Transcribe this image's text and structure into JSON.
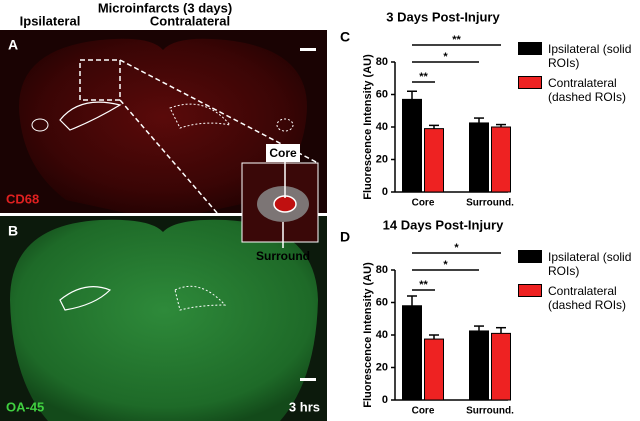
{
  "figure": {
    "title": "Microinfarcts (3 days)",
    "left_label": "Ipsilateral",
    "right_label": "Contralateral",
    "panel_a": "A",
    "panel_b": "B",
    "panel_c": "C",
    "panel_d": "D",
    "stain_a": "CD68",
    "stain_b": "OA-45",
    "time_b": "3 hrs",
    "inset_core": "Core",
    "inset_surround": "Surround"
  },
  "chart_data": [
    {
      "type": "bar",
      "title": "3 Days Post-Injury",
      "y_label": "Fluorescence Intensity (AU)",
      "categories": [
        "Core",
        "Surround."
      ],
      "series": [
        {
          "name": "Ipsilateral (solid ROIs)",
          "color": "#000000",
          "values": [
            57,
            42.5
          ],
          "errors": [
            5,
            3
          ]
        },
        {
          "name": "Contralateral (dashed ROIs)",
          "color": "#ee2222",
          "values": [
            39,
            40
          ],
          "errors": [
            2,
            1.5
          ]
        }
      ],
      "ylim": [
        0,
        80
      ],
      "yticks": [
        0,
        20,
        40,
        60,
        80
      ],
      "annotations": [
        "**",
        "*",
        "**"
      ]
    },
    {
      "type": "bar",
      "title": "14 Days Post-Injury",
      "y_label": "Fluorescence Intensity (AU)",
      "categories": [
        "Core",
        "Surround."
      ],
      "series": [
        {
          "name": "Ipsilateral (solid ROIs)",
          "color": "#000000",
          "values": [
            58,
            42.5
          ],
          "errors": [
            6,
            3
          ]
        },
        {
          "name": "Contralateral (dashed ROIs)",
          "color": "#ee2222",
          "values": [
            37.5,
            41
          ],
          "errors": [
            2.5,
            3.5
          ]
        }
      ],
      "ylim": [
        0,
        80
      ],
      "yticks": [
        0,
        20,
        40,
        60,
        80
      ],
      "annotations": [
        "*",
        "*",
        "**"
      ]
    }
  ]
}
